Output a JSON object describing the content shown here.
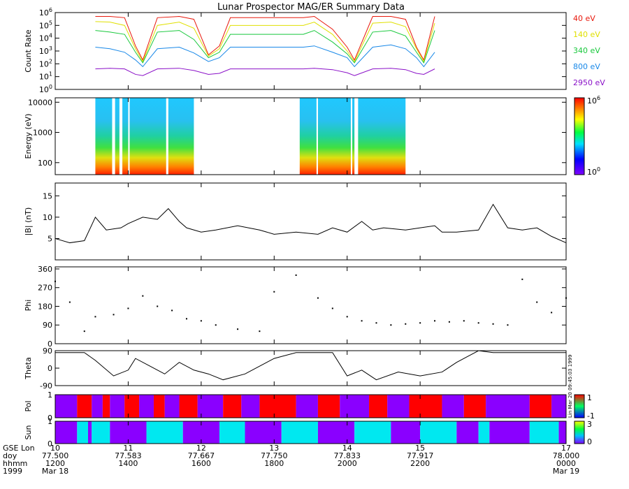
{
  "title": "Lunar Prospector MAG/ER Summary Data",
  "colors": {
    "axis": "#000000",
    "ch40": "#e8180c",
    "ch140": "#e0e000",
    "ch340": "#18c83c",
    "ch800": "#1888e8",
    "ch2950": "#8a10c8",
    "red": "#ff0000",
    "purple": "#8a00ff",
    "cyan": "#00e8f0",
    "blue": "#0a28ff"
  },
  "chart_data": [
    {
      "panel": "count_rate",
      "type": "line",
      "ylabel": "Count Rate",
      "yscale": "log",
      "ylim": [
        1,
        1000000
      ],
      "yticks": [
        {
          "v": 1,
          "b": "10",
          "e": "0"
        },
        {
          "v": 10,
          "b": "10",
          "e": "1"
        },
        {
          "v": 100,
          "b": "10",
          "e": "2"
        },
        {
          "v": 1000,
          "b": "10",
          "e": "3"
        },
        {
          "v": 10000,
          "b": "10",
          "e": "4"
        },
        {
          "v": 100000,
          "b": "10",
          "e": "5"
        },
        {
          "v": 1000000,
          "b": "10",
          "e": "6"
        }
      ],
      "x": [
        10.55,
        10.75,
        10.95,
        11.1,
        11.2,
        11.4,
        11.7,
        11.9,
        12.1,
        12.25,
        12.4,
        13.4,
        13.55,
        13.8,
        14.0,
        14.1,
        14.35,
        14.6,
        14.8,
        14.95,
        15.05,
        15.2
      ],
      "series": [
        {
          "name": "40 eV",
          "values": [
            500000,
            500000,
            400000,
            2500,
            200,
            400000,
            500000,
            300000,
            500,
            2500,
            400000,
            400000,
            500000,
            50000,
            2000,
            200,
            500000,
            500000,
            300000,
            2000,
            200,
            500000
          ]
        },
        {
          "name": "140 eV",
          "values": [
            200000,
            180000,
            100000,
            1500,
            150,
            100000,
            180000,
            60000,
            400,
            1500,
            100000,
            100000,
            180000,
            20000,
            1000,
            150,
            150000,
            180000,
            80000,
            1500,
            150,
            150000
          ]
        },
        {
          "name": "340 eV",
          "values": [
            40000,
            30000,
            20000,
            800,
            120,
            30000,
            40000,
            8000,
            300,
            800,
            20000,
            20000,
            40000,
            5000,
            600,
            120,
            30000,
            40000,
            15000,
            800,
            120,
            40000
          ]
        },
        {
          "name": "800 eV",
          "values": [
            2000,
            1500,
            800,
            200,
            60,
            1500,
            2000,
            700,
            150,
            300,
            2000,
            2000,
            2500,
            800,
            300,
            60,
            2000,
            3000,
            1500,
            300,
            60,
            800
          ]
        },
        {
          "name": "2950 eV",
          "values": [
            40,
            45,
            40,
            15,
            12,
            40,
            45,
            30,
            15,
            18,
            40,
            40,
            45,
            35,
            20,
            12,
            40,
            45,
            35,
            18,
            15,
            40
          ]
        }
      ]
    },
    {
      "panel": "energy_spectrogram",
      "type": "heatmap",
      "ylabel": "Energy (eV)",
      "yscale": "log",
      "ylim": [
        40,
        14000
      ],
      "yticks": [
        {
          "v": 100,
          "label": "100"
        },
        {
          "v": 1000,
          "label": "1000"
        },
        {
          "v": 10000,
          "label": "10000"
        }
      ],
      "colorbar": {
        "min": {
          "b": "10",
          "e": "0"
        },
        "max": {
          "b": "10",
          "e": "6"
        }
      },
      "data_intervals": [
        [
          10.55,
          11.9
        ],
        [
          13.35,
          14.8
        ]
      ],
      "gaps": [
        [
          10.78,
          10.82
        ],
        [
          10.88,
          10.92
        ],
        [
          11.0,
          11.02
        ],
        [
          11.52,
          11.55
        ],
        [
          12.0,
          12.02
        ],
        [
          13.58,
          13.6
        ],
        [
          14.05,
          14.07
        ],
        [
          14.1,
          14.15
        ]
      ]
    },
    {
      "panel": "btot",
      "type": "line",
      "ylabel": "|B| (nT)",
      "ylim": [
        0,
        18
      ],
      "yticks": [
        {
          "v": 5,
          "label": "5"
        },
        {
          "v": 10,
          "label": "10"
        },
        {
          "v": 15,
          "label": "15"
        }
      ],
      "x": [
        10.0,
        10.2,
        10.4,
        10.55,
        10.7,
        10.9,
        11.0,
        11.2,
        11.4,
        11.55,
        11.7,
        11.8,
        12.0,
        12.2,
        12.5,
        12.8,
        13.0,
        13.3,
        13.6,
        13.8,
        14.0,
        14.2,
        14.35,
        14.5,
        14.8,
        15.0,
        15.2,
        15.3,
        15.5,
        15.8,
        16.0,
        16.2,
        16.4,
        16.6,
        16.8,
        17.0
      ],
      "values": [
        5,
        4,
        4.5,
        10,
        7,
        7.5,
        8.5,
        10,
        9.5,
        12,
        9,
        7.5,
        6.5,
        7,
        8,
        7,
        6,
        6.5,
        6,
        7.5,
        6.5,
        9,
        7,
        7.5,
        7,
        7.5,
        8,
        6.5,
        6.5,
        7,
        13,
        7.5,
        7,
        7.5,
        5.5,
        4
      ]
    },
    {
      "panel": "phi",
      "type": "scatter",
      "ylabel": "Phi",
      "ylim": [
        0,
        370
      ],
      "yticks": [
        {
          "v": 0,
          "label": "0"
        },
        {
          "v": 90,
          "label": "90"
        },
        {
          "v": 180,
          "label": "180"
        },
        {
          "v": 270,
          "label": "270"
        },
        {
          "v": 360,
          "label": "360"
        }
      ],
      "x": [
        10.0,
        10.2,
        10.4,
        10.55,
        10.8,
        11.0,
        11.2,
        11.4,
        11.6,
        11.8,
        12.0,
        12.2,
        12.5,
        12.8,
        13.0,
        13.3,
        13.6,
        13.8,
        14.0,
        14.2,
        14.4,
        14.6,
        14.8,
        15.0,
        15.2,
        15.4,
        15.6,
        15.8,
        16.0,
        16.2,
        16.4,
        16.6,
        16.8,
        17.0
      ],
      "values": [
        300,
        200,
        60,
        130,
        140,
        170,
        230,
        180,
        160,
        120,
        110,
        90,
        70,
        60,
        250,
        330,
        220,
        170,
        130,
        110,
        100,
        90,
        95,
        100,
        110,
        105,
        110,
        100,
        95,
        90,
        310,
        200,
        150,
        220
      ]
    },
    {
      "panel": "theta",
      "type": "line",
      "ylabel": "Theta",
      "ylim": [
        -90,
        90
      ],
      "yticks": [
        {
          "v": -90,
          "label": "-90"
        },
        {
          "v": 0,
          "label": "0"
        },
        {
          "v": 90,
          "label": "90"
        }
      ],
      "x": [
        10.0,
        10.4,
        10.55,
        10.8,
        11.0,
        11.1,
        11.3,
        11.5,
        11.7,
        11.9,
        12.1,
        12.3,
        12.6,
        12.8,
        13.0,
        13.3,
        13.5,
        13.8,
        14.0,
        14.2,
        14.4,
        14.7,
        15.0,
        15.3,
        15.5,
        15.8,
        16.0,
        16.3,
        16.6,
        17.0
      ],
      "values": [
        80,
        80,
        40,
        -40,
        -10,
        50,
        10,
        -30,
        30,
        -10,
        -30,
        -60,
        -30,
        10,
        50,
        80,
        80,
        80,
        -40,
        -10,
        -60,
        -20,
        -40,
        -20,
        30,
        90,
        80,
        80,
        80,
        80
      ]
    },
    {
      "panel": "polarity",
      "type": "heatmap",
      "ylabel": "Pol",
      "ylim": [
        0,
        1
      ],
      "yticks": [
        {
          "v": 0,
          "label": "0"
        },
        {
          "v": 1,
          "label": "1"
        }
      ],
      "colorbar": {
        "min": "-1",
        "max": "1"
      },
      "segments": [
        [
          10.0,
          10.3,
          "purple"
        ],
        [
          10.3,
          10.5,
          "red"
        ],
        [
          10.5,
          10.65,
          "purple"
        ],
        [
          10.65,
          10.75,
          "red"
        ],
        [
          10.75,
          10.95,
          "purple"
        ],
        [
          10.95,
          11.15,
          "red"
        ],
        [
          11.15,
          11.35,
          "purple"
        ],
        [
          11.35,
          11.5,
          "red"
        ],
        [
          11.5,
          11.7,
          "purple"
        ],
        [
          11.7,
          11.95,
          "red"
        ],
        [
          11.95,
          12.3,
          "purple"
        ],
        [
          12.3,
          12.55,
          "red"
        ],
        [
          12.55,
          12.8,
          "purple"
        ],
        [
          12.8,
          13.3,
          "red"
        ],
        [
          13.3,
          13.6,
          "purple"
        ],
        [
          13.6,
          13.9,
          "red"
        ],
        [
          13.9,
          14.3,
          "purple"
        ],
        [
          14.3,
          14.55,
          "red"
        ],
        [
          14.55,
          14.85,
          "purple"
        ],
        [
          14.85,
          15.3,
          "red"
        ],
        [
          15.3,
          15.6,
          "purple"
        ],
        [
          15.6,
          15.9,
          "red"
        ],
        [
          15.9,
          16.5,
          "purple"
        ],
        [
          16.5,
          16.8,
          "red"
        ],
        [
          16.8,
          17.0,
          "purple"
        ]
      ]
    },
    {
      "panel": "sun",
      "type": "heatmap",
      "ylabel": "Sun",
      "ylim": [
        0,
        1
      ],
      "yticks": [
        {
          "v": 0,
          "label": "0"
        },
        {
          "v": 1,
          "label": "1"
        }
      ],
      "colorbar": {
        "min": "0",
        "max": "3"
      },
      "segments": [
        [
          10.0,
          10.3,
          "purple"
        ],
        [
          10.3,
          10.45,
          "cyan"
        ],
        [
          10.45,
          10.5,
          "purple"
        ],
        [
          10.5,
          10.75,
          "cyan"
        ],
        [
          10.75,
          11.25,
          "purple"
        ],
        [
          11.25,
          11.75,
          "cyan"
        ],
        [
          11.75,
          12.25,
          "purple"
        ],
        [
          12.25,
          12.6,
          "cyan"
        ],
        [
          12.6,
          13.1,
          "purple"
        ],
        [
          13.1,
          13.6,
          "cyan"
        ],
        [
          13.6,
          14.1,
          "purple"
        ],
        [
          14.1,
          14.6,
          "cyan"
        ],
        [
          14.6,
          15.0,
          "purple"
        ],
        [
          15.0,
          15.5,
          "cyan"
        ],
        [
          15.5,
          15.8,
          "purple"
        ],
        [
          15.8,
          15.95,
          "cyan"
        ],
        [
          15.95,
          16.5,
          "purple"
        ],
        [
          16.5,
          16.9,
          "cyan"
        ],
        [
          16.9,
          17.0,
          "purple"
        ]
      ]
    }
  ],
  "x_axis": {
    "xlim": [
      10,
      17
    ],
    "row_labels": [
      "GSE Lon",
      "doy",
      "hhmm",
      "1999"
    ],
    "ticks": [
      {
        "v": 10,
        "lon": "10",
        "doy": "77.500",
        "hhmm": "1200",
        "extra": "Mar 18"
      },
      {
        "v": 11,
        "lon": "11",
        "doy": "77.583",
        "hhmm": "1400",
        "extra": ""
      },
      {
        "v": 12,
        "lon": "12",
        "doy": "77.667",
        "hhmm": "1600",
        "extra": ""
      },
      {
        "v": 13,
        "lon": "13",
        "doy": "77.750",
        "hhmm": "1800",
        "extra": ""
      },
      {
        "v": 14,
        "lon": "14",
        "doy": "77.833",
        "hhmm": "2000",
        "extra": ""
      },
      {
        "v": 15,
        "lon": "15",
        "doy": "77.917",
        "hhmm": "2200",
        "extra": ""
      },
      {
        "v": 17,
        "lon": "17",
        "doy": "78.000",
        "hhmm": "0000",
        "extra": "Mar 19"
      }
    ]
  },
  "stamp": "Lin Mar 20 09:45:03 1999"
}
